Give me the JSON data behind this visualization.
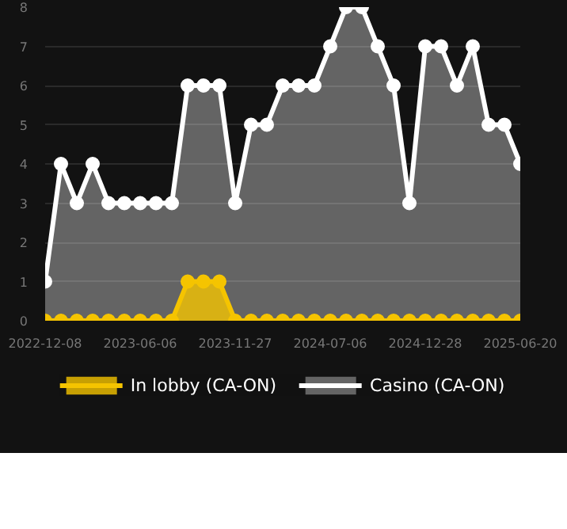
{
  "chart_data": {
    "type": "area",
    "categories": [
      "2022-12-08",
      null,
      null,
      null,
      null,
      null,
      "2023-06-06",
      null,
      null,
      null,
      null,
      null,
      "2023-11-27",
      null,
      null,
      null,
      null,
      null,
      "2024-07-06",
      null,
      null,
      null,
      null,
      null,
      "2024-12-28",
      null,
      null,
      null,
      null,
      null,
      "2025-06-20"
    ],
    "series": [
      {
        "name": "In lobby (CA-ON)",
        "color": "#f5c400",
        "values": [
          0,
          0,
          0,
          0,
          0,
          0,
          0,
          0,
          0,
          1,
          1,
          1,
          0,
          0,
          0,
          0,
          0,
          0,
          0,
          0,
          0,
          0,
          0,
          0,
          0,
          0,
          0,
          0,
          0,
          0,
          0
        ]
      },
      {
        "name": "Casino (CA-ON)",
        "color": "#ffffff",
        "values": [
          1,
          4,
          3,
          4,
          3,
          3,
          3,
          3,
          3,
          6,
          6,
          6,
          3,
          5,
          5,
          6,
          6,
          6,
          7,
          8,
          8,
          7,
          6,
          3,
          7,
          7,
          6,
          7,
          5,
          5,
          4
        ]
      }
    ],
    "ylim": [
      0,
      8
    ],
    "yticks": [
      0,
      1,
      2,
      3,
      4,
      5,
      6,
      7,
      8
    ],
    "grid": "y",
    "legend": "bottom",
    "marker": "circle"
  }
}
